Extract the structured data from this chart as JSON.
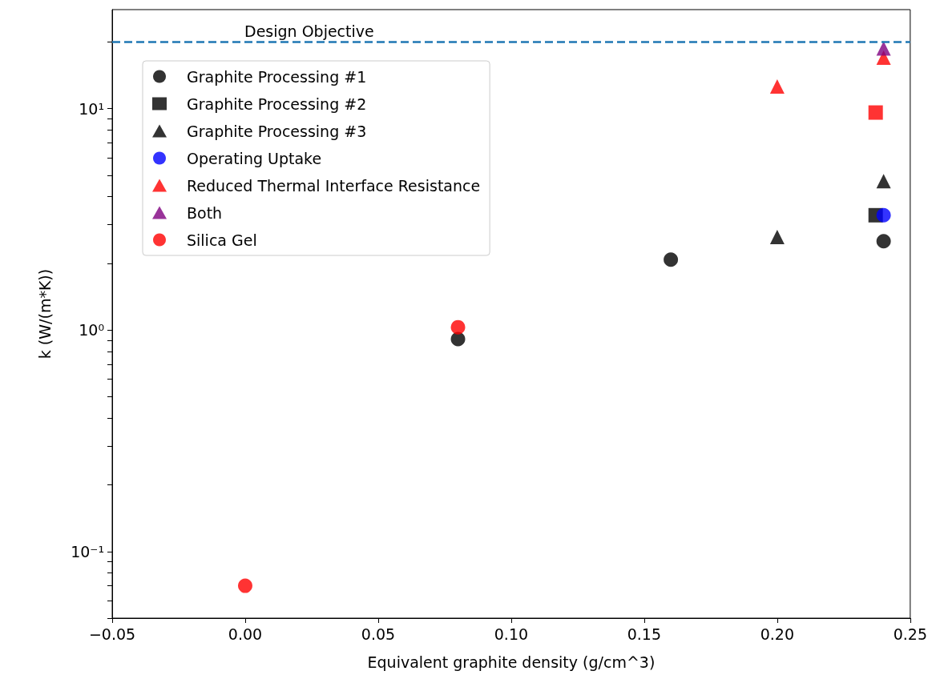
{
  "chart_data": {
    "type": "scatter",
    "xlabel": "Equivalent graphite density (g/cm^3)",
    "ylabel": "k (W/(m*K))",
    "log": "y",
    "grid": false,
    "legend": "top left",
    "xlim": [
      -0.05,
      0.25
    ],
    "xticks": [
      {
        "value": -0.05,
        "label": "−0.05"
      },
      {
        "value": 0,
        "label": "0.00"
      },
      {
        "value": 0.05,
        "label": "0.05"
      },
      {
        "value": 0.1,
        "label": "0.10"
      },
      {
        "value": 0.15,
        "label": "0.15"
      },
      {
        "value": 0.2,
        "label": "0.20"
      },
      {
        "value": 0.25,
        "label": "0.25"
      }
    ],
    "ylim": [
      0.05,
      28
    ],
    "yticks": [
      {
        "value": 0.05,
        "label": null
      },
      {
        "value": 0.06,
        "label": null
      },
      {
        "value": 0.07,
        "label": null
      },
      {
        "value": 0.08,
        "label": null
      },
      {
        "value": 0.09,
        "label": null
      },
      {
        "value": 0.1,
        "label": "10⁻¹"
      },
      {
        "value": 0.2,
        "label": null
      },
      {
        "value": 0.3,
        "label": null
      },
      {
        "value": 0.4,
        "label": null
      },
      {
        "value": 0.5,
        "label": null
      },
      {
        "value": 0.6,
        "label": null
      },
      {
        "value": 0.7,
        "label": null
      },
      {
        "value": 0.8,
        "label": null
      },
      {
        "value": 0.9,
        "label": null
      },
      {
        "value": 1,
        "label": "10⁰"
      },
      {
        "value": 2,
        "label": null
      },
      {
        "value": 3,
        "label": null
      },
      {
        "value": 4,
        "label": null
      },
      {
        "value": 5,
        "label": null
      },
      {
        "value": 6,
        "label": null
      },
      {
        "value": 7,
        "label": null
      },
      {
        "value": 8,
        "label": null
      },
      {
        "value": 9,
        "label": null
      },
      {
        "value": 10,
        "label": "10¹"
      },
      {
        "value": 20,
        "label": null
      }
    ],
    "ref_lines": [
      {
        "axis": "y",
        "value": 20,
        "label": "Design Objective",
        "color": "#1f77b4",
        "line_style": "dashed"
      }
    ],
    "series": [
      {
        "name": "Graphite Processing #1",
        "color": "#000000",
        "marker": "circle",
        "x": [
          0.08,
          0.16,
          0.24
        ],
        "values": [
          0.91,
          2.08,
          2.52
        ]
      },
      {
        "name": "Graphite Processing #2",
        "color": "#000000",
        "marker": "square",
        "x": [
          0.237
        ],
        "values": [
          3.3
        ]
      },
      {
        "name": "Graphite Processing #3",
        "color": "#000000",
        "marker": "triangle",
        "x": [
          0.2,
          0.24
        ],
        "values": [
          2.63,
          4.7
        ]
      },
      {
        "name": "Operating Uptake",
        "color": "#0000ff",
        "marker": "circle",
        "x": [
          0.24
        ],
        "values": [
          3.3
        ]
      },
      {
        "name": "Reduced Thermal Interface Resistance",
        "color": "#ff0000",
        "marker": "triangle",
        "x": [
          0.2,
          0.24
        ],
        "values": [
          12.6,
          17
        ]
      },
      {
        "name": "Both",
        "color": "#800080",
        "marker": "triangle",
        "x": [
          0.24
        ],
        "values": [
          18.7
        ]
      },
      {
        "name": "Silica Gel",
        "color": "#ff0000",
        "marker": "circle",
        "x": [
          0
        ],
        "values": [
          0.07
        ]
      },
      {
        "color": "#ff0000",
        "marker": "circle",
        "x": [
          0.08
        ],
        "values": [
          1.03
        ]
      },
      {
        "color": "#ff0000",
        "marker": "square",
        "x": [
          0.237
        ],
        "values": [
          9.6
        ]
      }
    ]
  }
}
